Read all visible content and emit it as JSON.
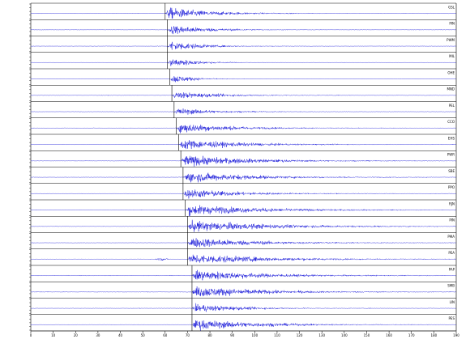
{
  "chart_data": {
    "type": "line",
    "title": "",
    "xlabel": "",
    "ylabel": "",
    "x_ticks": [
      "0",
      "10",
      "20",
      "30",
      "40",
      "50",
      "60",
      "70",
      "80",
      "90",
      "100",
      "110",
      "120",
      "130",
      "140",
      "150",
      "160",
      "170",
      "180",
      "190"
    ],
    "xlim": [
      0,
      190
    ],
    "grid": false,
    "colors": {
      "trace": "#1515d8",
      "frame": "#000000",
      "pick": "#000000"
    },
    "traces": [
      {
        "station": "GSL",
        "onset": 60,
        "duration": 45,
        "amp": 1.0,
        "noise": 0.04,
        "precursor": null
      },
      {
        "station": "PIN",
        "onset": 61,
        "duration": 40,
        "amp": 0.8,
        "noise": 0.04,
        "precursor": null
      },
      {
        "station": "PWM",
        "onset": 61,
        "duration": 30,
        "amp": 0.9,
        "noise": 0.04,
        "precursor": null
      },
      {
        "station": "MIL",
        "onset": 61,
        "duration": 28,
        "amp": 0.8,
        "noise": 0.03,
        "precursor": null
      },
      {
        "station": "OHE",
        "onset": 62,
        "duration": 22,
        "amp": 0.7,
        "noise": 0.03,
        "precursor": null
      },
      {
        "station": "MND",
        "onset": 63,
        "duration": 50,
        "amp": 0.6,
        "noise": 0.04,
        "precursor": null
      },
      {
        "station": "PEL",
        "onset": 64,
        "duration": 40,
        "amp": 0.6,
        "noise": 0.04,
        "precursor": null
      },
      {
        "station": "CCO",
        "onset": 65,
        "duration": 55,
        "amp": 0.85,
        "noise": 0.04,
        "precursor": null
      },
      {
        "station": "EHS",
        "onset": 66,
        "duration": 60,
        "amp": 0.9,
        "noise": 0.04,
        "precursor": null
      },
      {
        "station": "PWR",
        "onset": 67,
        "duration": 70,
        "amp": 0.95,
        "noise": 0.04,
        "precursor": null
      },
      {
        "station": "SBE",
        "onset": 68,
        "duration": 70,
        "amp": 0.9,
        "noise": 0.04,
        "precursor": null
      },
      {
        "station": "PPO",
        "onset": 68,
        "duration": 55,
        "amp": 0.85,
        "noise": 0.04,
        "precursor": null
      },
      {
        "station": "RJN",
        "onset": 69,
        "duration": 80,
        "amp": 0.9,
        "noise": 0.04,
        "precursor": null
      },
      {
        "station": "PIN",
        "onset": 70,
        "duration": 90,
        "amp": 0.95,
        "noise": 0.04,
        "precursor": null
      },
      {
        "station": "PMA",
        "onset": 70,
        "duration": 70,
        "amp": 0.9,
        "noise": 0.04,
        "precursor": null
      },
      {
        "station": "PEA",
        "onset": 70,
        "duration": 80,
        "amp": 0.9,
        "noise": 0.04,
        "precursor": {
          "start": 55,
          "end": 62,
          "amp": 0.25
        }
      },
      {
        "station": "PAP",
        "onset": 72,
        "duration": 70,
        "amp": 0.95,
        "noise": 0.05,
        "precursor": null
      },
      {
        "station": "SMB",
        "onset": 72,
        "duration": 70,
        "amp": 0.95,
        "noise": 0.05,
        "precursor": null
      },
      {
        "station": "LIN",
        "onset": 72,
        "duration": 50,
        "amp": 0.7,
        "noise": 0.04,
        "precursor": null
      },
      {
        "station": "PES",
        "onset": 72,
        "duration": 70,
        "amp": 0.9,
        "noise": 0.04,
        "precursor": null
      }
    ]
  }
}
